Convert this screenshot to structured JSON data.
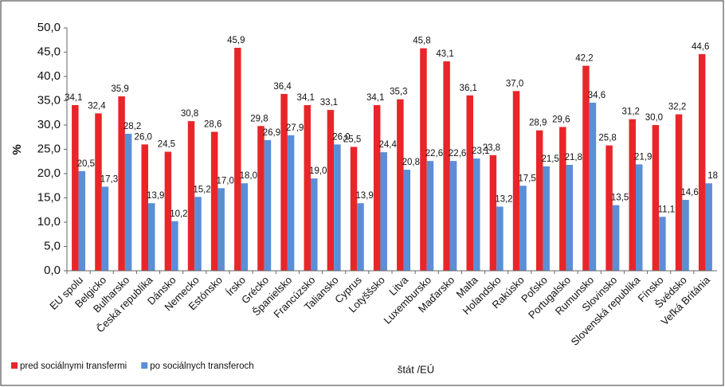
{
  "chart_data": {
    "type": "bar",
    "y_label": "%",
    "x_label": "štát /EÚ",
    "categories": [
      "EU spolu",
      "Belgicko",
      "Bulharsko",
      "Česká republika",
      "Dánsko",
      "Nemecko",
      "Estónsko",
      "Írsko",
      "Grécko",
      "Španielsko",
      "Francúzsko",
      "Taliansko",
      "Cyprus",
      "Lotyššsko",
      "Litva",
      "Luxembursko",
      "Maďarsko",
      "Malta",
      "Holandsko",
      "Rakúsko",
      "Poľsko",
      "Portugalsko",
      "Rumunsko",
      "Slovinsko",
      "Slovenská republika",
      "Fínsko",
      "Švédsko",
      "Veľká Británia"
    ],
    "series": [
      {
        "name": "pred sociálnymi transfermi",
        "color": "#e8262a",
        "values": [
          34.1,
          32.4,
          35.9,
          26.0,
          24.5,
          30.8,
          28.6,
          45.9,
          29.8,
          36.4,
          34.1,
          33.1,
          25.5,
          34.1,
          35.3,
          45.8,
          43.1,
          36.1,
          23.8,
          37.0,
          28.9,
          29.6,
          42.2,
          25.8,
          31.2,
          30.0,
          32.2,
          44.6
        ],
        "value_labels": [
          "34,1",
          "32,4",
          "35,9",
          "26,0",
          "24,5",
          "30,8",
          "28,6",
          "45,9",
          "29,8",
          "36,4",
          "34,1",
          "33,1",
          "25,5",
          "34,1",
          "35,3",
          "45,8",
          "43,1",
          "36,1",
          "23,8",
          "37,0",
          "28,9",
          "29,6",
          "42,2",
          "25,8",
          "31,2",
          "30,0",
          "32,2",
          "44,6"
        ]
      },
      {
        "name": "po sociálnych transferoch",
        "color": "#5b8ed6",
        "values": [
          20.5,
          17.3,
          28.2,
          13.9,
          10.2,
          15.2,
          17.0,
          18.0,
          26.9,
          27.9,
          19.0,
          26.0,
          13.9,
          24.4,
          20.8,
          22.6,
          22.6,
          23.1,
          13.2,
          17.5,
          21.5,
          21.8,
          34.6,
          13.5,
          21.9,
          11.1,
          14.6,
          18
        ],
        "value_labels": [
          "20,5",
          "17,3",
          "28,2",
          "13,9",
          "10,2",
          "15,2",
          "17,0",
          "18,0",
          "26,9",
          "27,9",
          "19,0",
          "26,0",
          "13,9",
          "24,4",
          "20,8",
          "22,6",
          "22,6",
          "23,1",
          "13,2",
          "17,5",
          "21,5",
          "21,8",
          "34,6",
          "13,5",
          "21,9",
          "11,1",
          "14,6",
          "18"
        ]
      }
    ],
    "ylim": [
      0,
      50
    ],
    "yticks": [
      {
        "value": 0,
        "label": "0,0"
      },
      {
        "value": 5,
        "label": "5,0"
      },
      {
        "value": 10,
        "label": "10,0"
      },
      {
        "value": 15,
        "label": "15,0"
      },
      {
        "value": 20,
        "label": "20,0"
      },
      {
        "value": 25,
        "label": "25,0"
      },
      {
        "value": 30,
        "label": "30,0"
      },
      {
        "value": 35,
        "label": "35,0"
      },
      {
        "value": 40,
        "label": "40,0"
      },
      {
        "value": 45,
        "label": "45,0"
      },
      {
        "value": 50,
        "label": "50,0"
      }
    ],
    "legend": "bottom-left"
  }
}
